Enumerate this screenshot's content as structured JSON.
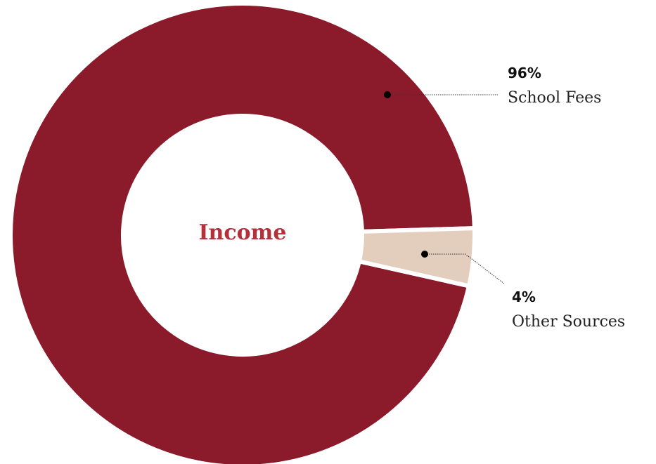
{
  "chart_data": {
    "type": "pie",
    "title": "Income",
    "slices": [
      {
        "label": "School Fees",
        "value": 96,
        "display": "96%",
        "color": "#8b1a2a"
      },
      {
        "label": "Other Sources",
        "value": 4,
        "display": "4%",
        "color": "#e3cdbc"
      }
    ]
  },
  "colors": {
    "center_text": "#b4303a",
    "separator": "#ffffff"
  }
}
